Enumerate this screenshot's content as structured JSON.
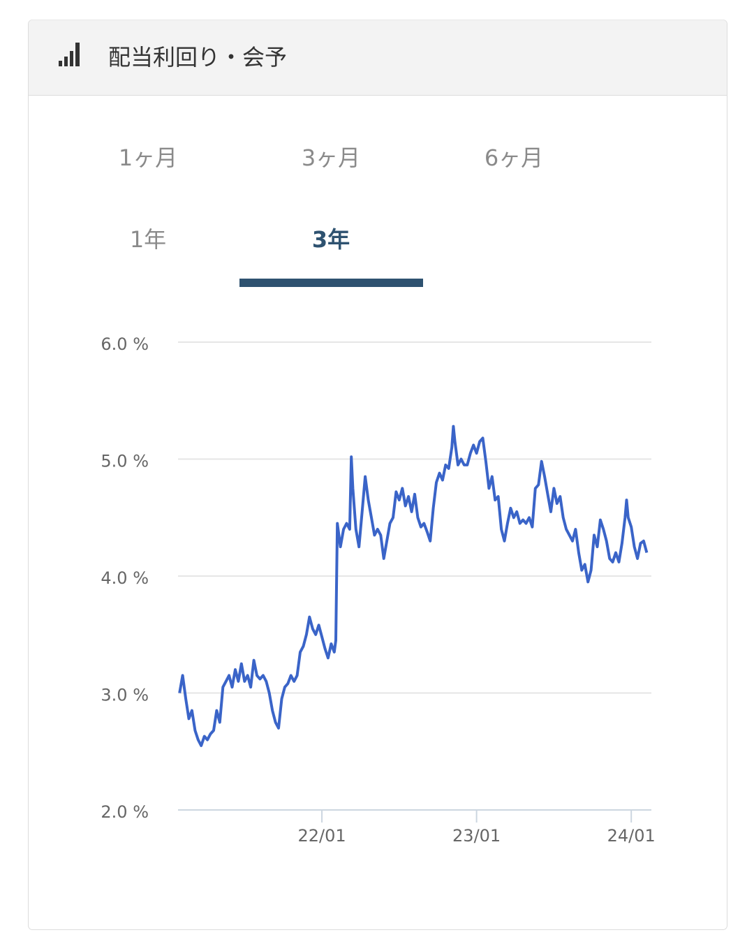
{
  "header": {
    "title": "配当利回り・会予"
  },
  "tabs": {
    "items": [
      "1ヶ月",
      "3ヶ月",
      "6ヶ月",
      "1年",
      "3年"
    ],
    "active": 4
  },
  "chart_data": {
    "type": "line",
    "color": "#3a64c8",
    "grid": true,
    "x": [
      2021.08,
      2021.1,
      2021.12,
      2021.14,
      2021.16,
      2021.18,
      2021.2,
      2021.22,
      2021.24,
      2021.26,
      2021.28,
      2021.3,
      2021.32,
      2021.34,
      2021.36,
      2021.38,
      2021.4,
      2021.42,
      2021.44,
      2021.46,
      2021.48,
      2021.5,
      2021.52,
      2021.54,
      2021.56,
      2021.58,
      2021.6,
      2021.62,
      2021.64,
      2021.66,
      2021.68,
      2021.7,
      2021.72,
      2021.74,
      2021.76,
      2021.78,
      2021.8,
      2021.82,
      2021.84,
      2021.86,
      2021.88,
      2021.9,
      2021.92,
      2021.94,
      2021.96,
      2021.98,
      2022,
      2022.02,
      2022.04,
      2022.06,
      2022.08,
      2022.09,
      2022.1,
      2022.12,
      2022.14,
      2022.16,
      2022.18,
      2022.19,
      2022.2,
      2022.22,
      2022.24,
      2022.26,
      2022.28,
      2022.3,
      2022.32,
      2022.34,
      2022.36,
      2022.38,
      2022.4,
      2022.42,
      2022.44,
      2022.46,
      2022.48,
      2022.5,
      2022.52,
      2022.54,
      2022.56,
      2022.58,
      2022.6,
      2022.62,
      2022.64,
      2022.66,
      2022.68,
      2022.7,
      2022.72,
      2022.74,
      2022.76,
      2022.78,
      2022.8,
      2022.82,
      2022.84,
      2022.85,
      2022.86,
      2022.88,
      2022.9,
      2022.92,
      2022.94,
      2022.96,
      2022.98,
      2023,
      2023.02,
      2023.04,
      2023.06,
      2023.08,
      2023.1,
      2023.12,
      2023.14,
      2023.16,
      2023.18,
      2023.2,
      2023.22,
      2023.24,
      2023.26,
      2023.28,
      2023.3,
      2023.32,
      2023.34,
      2023.36,
      2023.38,
      2023.4,
      2023.42,
      2023.44,
      2023.46,
      2023.48,
      2023.5,
      2023.52,
      2023.54,
      2023.56,
      2023.58,
      2023.6,
      2023.62,
      2023.64,
      2023.66,
      2023.68,
      2023.7,
      2023.72,
      2023.74,
      2023.76,
      2023.78,
      2023.8,
      2023.82,
      2023.84,
      2023.86,
      2023.88,
      2023.9,
      2023.92,
      2023.94,
      2023.96,
      2023.97,
      2023.98,
      2024,
      2024.02,
      2024.04,
      2024.06,
      2024.08,
      2024.1
    ],
    "values": [
      3.0,
      3.15,
      2.95,
      2.78,
      2.85,
      2.68,
      2.6,
      2.55,
      2.63,
      2.6,
      2.65,
      2.68,
      2.85,
      2.75,
      3.05,
      3.1,
      3.15,
      3.05,
      3.2,
      3.1,
      3.25,
      3.1,
      3.15,
      3.05,
      3.28,
      3.15,
      3.12,
      3.15,
      3.1,
      3.0,
      2.85,
      2.75,
      2.7,
      2.95,
      3.05,
      3.08,
      3.15,
      3.1,
      3.15,
      3.35,
      3.4,
      3.5,
      3.65,
      3.55,
      3.5,
      3.58,
      3.48,
      3.38,
      3.3,
      3.42,
      3.35,
      3.45,
      4.45,
      4.25,
      4.4,
      4.45,
      4.4,
      5.02,
      4.75,
      4.4,
      4.25,
      4.55,
      4.85,
      4.65,
      4.5,
      4.35,
      4.4,
      4.35,
      4.15,
      4.3,
      4.45,
      4.5,
      4.72,
      4.65,
      4.75,
      4.6,
      4.68,
      4.55,
      4.7,
      4.5,
      4.42,
      4.45,
      4.38,
      4.3,
      4.58,
      4.8,
      4.88,
      4.82,
      4.95,
      4.92,
      5.1,
      5.28,
      5.15,
      4.95,
      5.0,
      4.95,
      4.95,
      5.05,
      5.12,
      5.05,
      5.15,
      5.18,
      4.98,
      4.75,
      4.85,
      4.65,
      4.68,
      4.4,
      4.3,
      4.45,
      4.58,
      4.5,
      4.55,
      4.45,
      4.48,
      4.45,
      4.5,
      4.42,
      4.75,
      4.78,
      4.98,
      4.85,
      4.7,
      4.55,
      4.75,
      4.62,
      4.68,
      4.5,
      4.4,
      4.35,
      4.3,
      4.4,
      4.2,
      4.05,
      4.1,
      3.95,
      4.05,
      4.35,
      4.25,
      4.48,
      4.4,
      4.3,
      4.15,
      4.12,
      4.2,
      4.12,
      4.28,
      4.5,
      4.65,
      4.5,
      4.42,
      4.25,
      4.15,
      4.28,
      4.3,
      4.2
    ],
    "xlim": [
      2021.07,
      2024.13
    ],
    "xticks": [
      {
        "value": 2022,
        "label": "22/01"
      },
      {
        "value": 2023,
        "label": "23/01"
      },
      {
        "value": 2024,
        "label": "24/01"
      }
    ],
    "ylim": [
      2,
      6
    ],
    "yticks": [
      {
        "value": 2,
        "label": "2.0 %"
      },
      {
        "value": 3,
        "label": "3.0 %"
      },
      {
        "value": 4,
        "label": "4.0 %"
      },
      {
        "value": 5,
        "label": "5.0 %"
      },
      {
        "value": 6,
        "label": "6.0 %"
      }
    ]
  }
}
